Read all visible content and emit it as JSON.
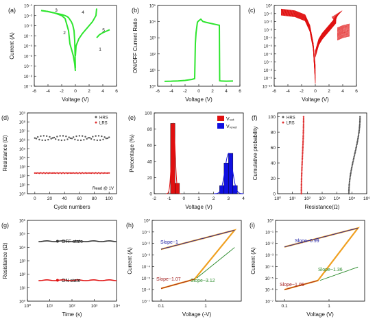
{
  "figure": {
    "panels": [
      {
        "id": "a",
        "label": "(a)",
        "xlabel": "Voltage (V)",
        "ylabel": "Current (A)"
      },
      {
        "id": "b",
        "label": "(b)",
        "xlabel": "Voltage (V)",
        "ylabel": "ON/OFF Current Ratio"
      },
      {
        "id": "c",
        "label": "(c)",
        "xlabel": "Voltage (V)",
        "ylabel": ""
      },
      {
        "id": "d",
        "label": "(d)",
        "xlabel": "Cycle numbers",
        "ylabel": "Resistance (Ω)"
      },
      {
        "id": "e",
        "label": "(e)",
        "xlabel": "Voltage (V)",
        "ylabel": "Percentage (%)"
      },
      {
        "id": "f",
        "label": "(f)",
        "xlabel": "Resistance(Ω)",
        "ylabel": "Cumulative probability"
      },
      {
        "id": "g",
        "label": "(g)",
        "xlabel": "Time (s)",
        "ylabel": "Resistance (Ω)"
      },
      {
        "id": "h",
        "label": "(h)",
        "xlabel": "Voltage (-V)",
        "ylabel": "Current (A)"
      },
      {
        "id": "i",
        "label": "(i)",
        "xlabel": "Voltage (V)",
        "ylabel": "Current (A)"
      }
    ]
  },
  "chart_data": [
    {
      "panel": "a",
      "type": "line",
      "xlabel": "Voltage (V)",
      "ylabel": "Current (A)",
      "xlim": [
        -6,
        6
      ],
      "ylim_log10": [
        -9,
        -1
      ],
      "yscale": "log",
      "color": "#2ee52e",
      "xticks": [
        -6,
        -4,
        -2,
        0,
        2,
        4,
        6
      ],
      "yticks": [
        "10⁻¹",
        "10⁻²",
        "10⁻³",
        "10⁻⁴",
        "10⁻⁵",
        "10⁻⁶",
        "10⁻⁷",
        "10⁻⁸",
        "10⁻⁹"
      ],
      "annotations": [
        "1",
        "2",
        "3",
        "4",
        "5"
      ],
      "series": [
        {
          "x": [
            -5,
            -4,
            -3,
            -2,
            -1.5,
            -1.2,
            -1.0,
            -0.8,
            -0.6,
            -0.4,
            -0.2,
            -0.1,
            0
          ],
          "y_log10": [
            -1.5,
            -1.6,
            -1.75,
            -1.9,
            -2.0,
            -2.1,
            -2.2,
            -2.4,
            -2.6,
            -2.9,
            -3.5,
            -4.5,
            -7.2
          ]
        },
        {
          "x": [
            0,
            0.1,
            0.5,
            1,
            1.5,
            2,
            2.5,
            3,
            3.1
          ],
          "y_log10": [
            -6.0,
            -5.0,
            -4.3,
            -3.8,
            -3.4,
            -3.0,
            -2.6,
            -2.0,
            -1.3
          ]
        },
        {
          "x": [
            3.1,
            3.5,
            4,
            4.5,
            5
          ],
          "y_log10": [
            -4.2,
            -3.9,
            -3.7,
            -3.55,
            -3.4
          ]
        },
        {
          "x": [
            -5,
            -4,
            -3,
            -2,
            -1.5,
            -1.0,
            -0.8,
            -0.5,
            -0.3,
            -0.1,
            0
          ],
          "y_log10": [
            -1.5,
            -1.6,
            -1.75,
            -2.0,
            -2.3,
            -3.5,
            -4.8,
            -5.5,
            -6.0,
            -6.8,
            -7.5
          ]
        }
      ]
    },
    {
      "panel": "b",
      "type": "line",
      "xlabel": "Voltage (V)",
      "ylabel": "ON/OFF Current Ratio",
      "xlim": [
        -6,
        6
      ],
      "ylim_log10": [
        -0.3,
        5
      ],
      "yscale": "log",
      "color": "#2ee52e",
      "xticks": [
        -6,
        -4,
        -2,
        0,
        2,
        4,
        6
      ],
      "yticks": [
        "10⁵",
        "10⁴",
        "10³",
        "10²",
        "10¹",
        "10⁰"
      ],
      "series": [
        {
          "x": [
            -5,
            -4,
            -3,
            -2,
            -1,
            -0.6,
            -0.5,
            -0.4,
            -0.2,
            0,
            0.3,
            0.6,
            1,
            1.5,
            2,
            2.5,
            3.0,
            3.05,
            3.3,
            4,
            5
          ],
          "y_log10": [
            0.02,
            0.03,
            0.05,
            0.08,
            0.15,
            0.2,
            2.5,
            3.2,
            3.9,
            4.0,
            4.1,
            3.95,
            3.9,
            3.85,
            3.8,
            3.75,
            3.7,
            0.06,
            0.04,
            0.03,
            0.04
          ]
        }
      ]
    },
    {
      "panel": "c",
      "type": "line",
      "xlabel": "Voltage (V)",
      "ylabel": "",
      "xlim": [
        -6,
        6
      ],
      "ylim_log10": [
        -10,
        0
      ],
      "yscale": "log",
      "color": "#e01010",
      "xticks": [
        -6,
        -4,
        -2,
        0,
        2,
        4,
        6
      ],
      "yticks": [
        "10⁰",
        "10⁻¹",
        "10⁻²",
        "10⁻³",
        "10⁻⁴",
        "10⁻⁵",
        "10⁻⁶",
        "10⁻⁷",
        "10⁻⁸",
        "10⁻⁹",
        "10⁻¹⁰"
      ],
      "series": [
        {
          "x": [
            -5,
            -3,
            -1.5,
            -0.8,
            -0.3,
            0
          ],
          "y_log10": [
            -0.8,
            -1.0,
            -1.5,
            -2.8,
            -5,
            -8.5
          ]
        },
        {
          "x": [
            0,
            0.5,
            1,
            2,
            3,
            3.2
          ],
          "y_log10": [
            -6,
            -4.5,
            -3.8,
            -2.8,
            -1.8,
            -1.0
          ]
        },
        {
          "x": [
            3.2,
            4,
            5
          ],
          "y_log10": [
            -3.5,
            -3.2,
            -3.0
          ]
        }
      ]
    },
    {
      "panel": "d",
      "type": "scatter",
      "xlabel": "Cycle numbers",
      "ylabel": "Resistance (Ω)",
      "xlim": [
        -10,
        110
      ],
      "ylim_log10": [
        0,
        9
      ],
      "yscale": "log",
      "xticks": [
        0,
        20,
        40,
        60,
        80,
        100
      ],
      "yticks": [
        "10⁹",
        "10⁸",
        "10⁷",
        "10⁶",
        "10⁵",
        "10⁴",
        "10³",
        "10²",
        "10¹",
        "10⁰"
      ],
      "legend": [
        "HRS",
        "LRS"
      ],
      "annotation": "Read @ 1V",
      "series": [
        {
          "name": "HRS",
          "color": "#555555",
          "level_log10": 6.2,
          "spread": 0.25
        },
        {
          "name": "LRS",
          "color": "#e03030",
          "level_log10": 2.3,
          "spread": 0.03
        }
      ]
    },
    {
      "panel": "e",
      "type": "bar",
      "xlabel": "Voltage (V)",
      "ylabel": "Percentage (%)",
      "xlim": [
        -2,
        4
      ],
      "ylim": [
        0,
        100
      ],
      "xticks": [
        -2,
        -1,
        0,
        1,
        2,
        3,
        4
      ],
      "yticks": [
        0,
        20,
        40,
        60,
        80,
        100
      ],
      "legend": [
        "Vₛₑₜ",
        "Vᵣₑₛₑₜ"
      ],
      "series": [
        {
          "name": "Vset",
          "color": "#e01010",
          "x": [
            -0.75,
            -0.45
          ],
          "values": [
            87,
            13
          ]
        },
        {
          "name": "Vreset",
          "color": "#1010e0",
          "x": [
            2.55,
            2.85,
            3.15,
            3.45
          ],
          "values": [
            10,
            38,
            50,
            10
          ]
        }
      ]
    },
    {
      "panel": "f",
      "type": "scatter",
      "xlabel": "Resistance(Ω)",
      "ylabel": "Cumulative probability",
      "xlim_log10": [
        0,
        6
      ],
      "ylim": [
        0,
        105
      ],
      "xscale": "log",
      "xticks": [
        "10⁰",
        "10¹",
        "10²",
        "10³",
        "10⁴",
        "10⁵",
        "10⁶"
      ],
      "yticks": [
        0,
        20,
        40,
        60,
        80,
        100
      ],
      "legend": [
        "HRS",
        "LRS"
      ],
      "series": [
        {
          "name": "HRS",
          "color": "#555555",
          "x_log10_range": [
            4.8,
            5.55
          ]
        },
        {
          "name": "LRS",
          "color": "#e03030",
          "x_log10_range": [
            1.6,
            1.75
          ]
        }
      ]
    },
    {
      "panel": "g",
      "type": "line",
      "xlabel": "Time (s)",
      "ylabel": "Resistance (Ω)",
      "xlim_log10": [
        0.5,
        4.1
      ],
      "ylim_log10": [
        0,
        6
      ],
      "xscale": "log",
      "yscale": "log",
      "xticks": [
        "10⁰",
        "10¹",
        "10²",
        "10³",
        "10⁴"
      ],
      "yticks": [
        "10⁶",
        "10⁵",
        "10⁴",
        "10³",
        "10²",
        "10¹",
        "10⁰"
      ],
      "series": [
        {
          "name": "OFF state",
          "color": "#333333",
          "level_log10": 4.45
        },
        {
          "name": "ON state",
          "color": "#e01010",
          "level_log10": 1.55
        }
      ]
    },
    {
      "panel": "h",
      "type": "line",
      "xlabel": "Voltage (-V)",
      "ylabel": "Current (A)",
      "xlim_log10": [
        -1.2,
        0.8
      ],
      "ylim_log10": [
        -7,
        0
      ],
      "xscale": "log",
      "yscale": "log",
      "xticks": [
        "0.1",
        "1"
      ],
      "yticks": [
        "10⁰",
        "10⁻¹",
        "10⁻²",
        "10⁻³",
        "10⁻⁴",
        "10⁻⁵",
        "10⁻⁶",
        "10⁻⁷"
      ],
      "annotations": [
        {
          "text": "Slope~1",
          "color": "#1a1aa0"
        },
        {
          "text": "Slope~1.07",
          "color": "#a01a1a"
        },
        {
          "text": "Slope~3.12",
          "color": "#2a8a2a"
        }
      ]
    },
    {
      "panel": "i",
      "type": "line",
      "xlabel": "Voltage (V)",
      "ylabel": "Current (A)",
      "xlim_log10": [
        -1.2,
        0.8
      ],
      "ylim_log10": [
        -7,
        0
      ],
      "xscale": "log",
      "yscale": "log",
      "xticks": [
        "0.1",
        "1"
      ],
      "yticks": [
        "10⁰",
        "10⁻¹",
        "10⁻²",
        "10⁻³",
        "10⁻⁴",
        "10⁻⁵",
        "10⁻⁶",
        "10⁻⁷"
      ],
      "annotations": [
        {
          "text": "Slope~0.99",
          "color": "#1a1aa0"
        },
        {
          "text": "Slope~1.36",
          "color": "#2a8a2a"
        },
        {
          "text": "Slope~1.05",
          "color": "#a01a1a"
        }
      ]
    }
  ]
}
